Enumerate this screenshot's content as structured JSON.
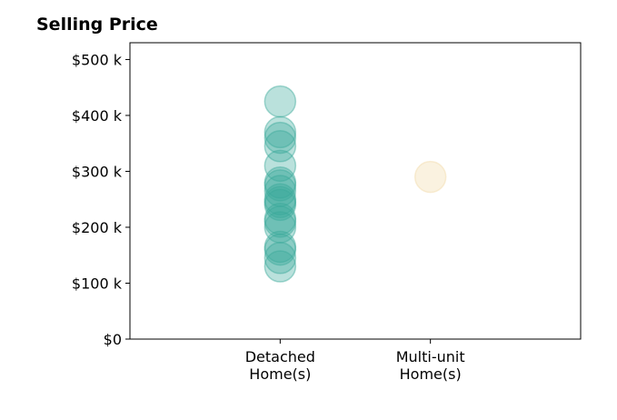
{
  "chart_data": {
    "type": "scatter",
    "title": "Selling Price",
    "xlabel": "",
    "ylabel": "",
    "categories": [
      "Detached\nHome(s)",
      "Multi-unit\nHome(s)"
    ],
    "yticks": [
      0,
      100000,
      200000,
      300000,
      400000,
      500000
    ],
    "ytick_labels": [
      "$0",
      "$100 k",
      "$200 k",
      "$300 k",
      "$400 k",
      "$500 k"
    ],
    "ylim": [
      0,
      530000
    ],
    "xlim": [
      -1,
      2
    ],
    "grid": false,
    "series": [
      {
        "category_index": 0,
        "color": "#3aa89a",
        "values": [
          425000,
          370000,
          360000,
          345000,
          310000,
          280000,
          275000,
          265000,
          250000,
          245000,
          240000,
          215000,
          210000,
          200000,
          165000,
          160000,
          145000,
          130000
        ]
      },
      {
        "category_index": 1,
        "color": "#f2d9a6",
        "values": [
          290000
        ]
      }
    ]
  }
}
